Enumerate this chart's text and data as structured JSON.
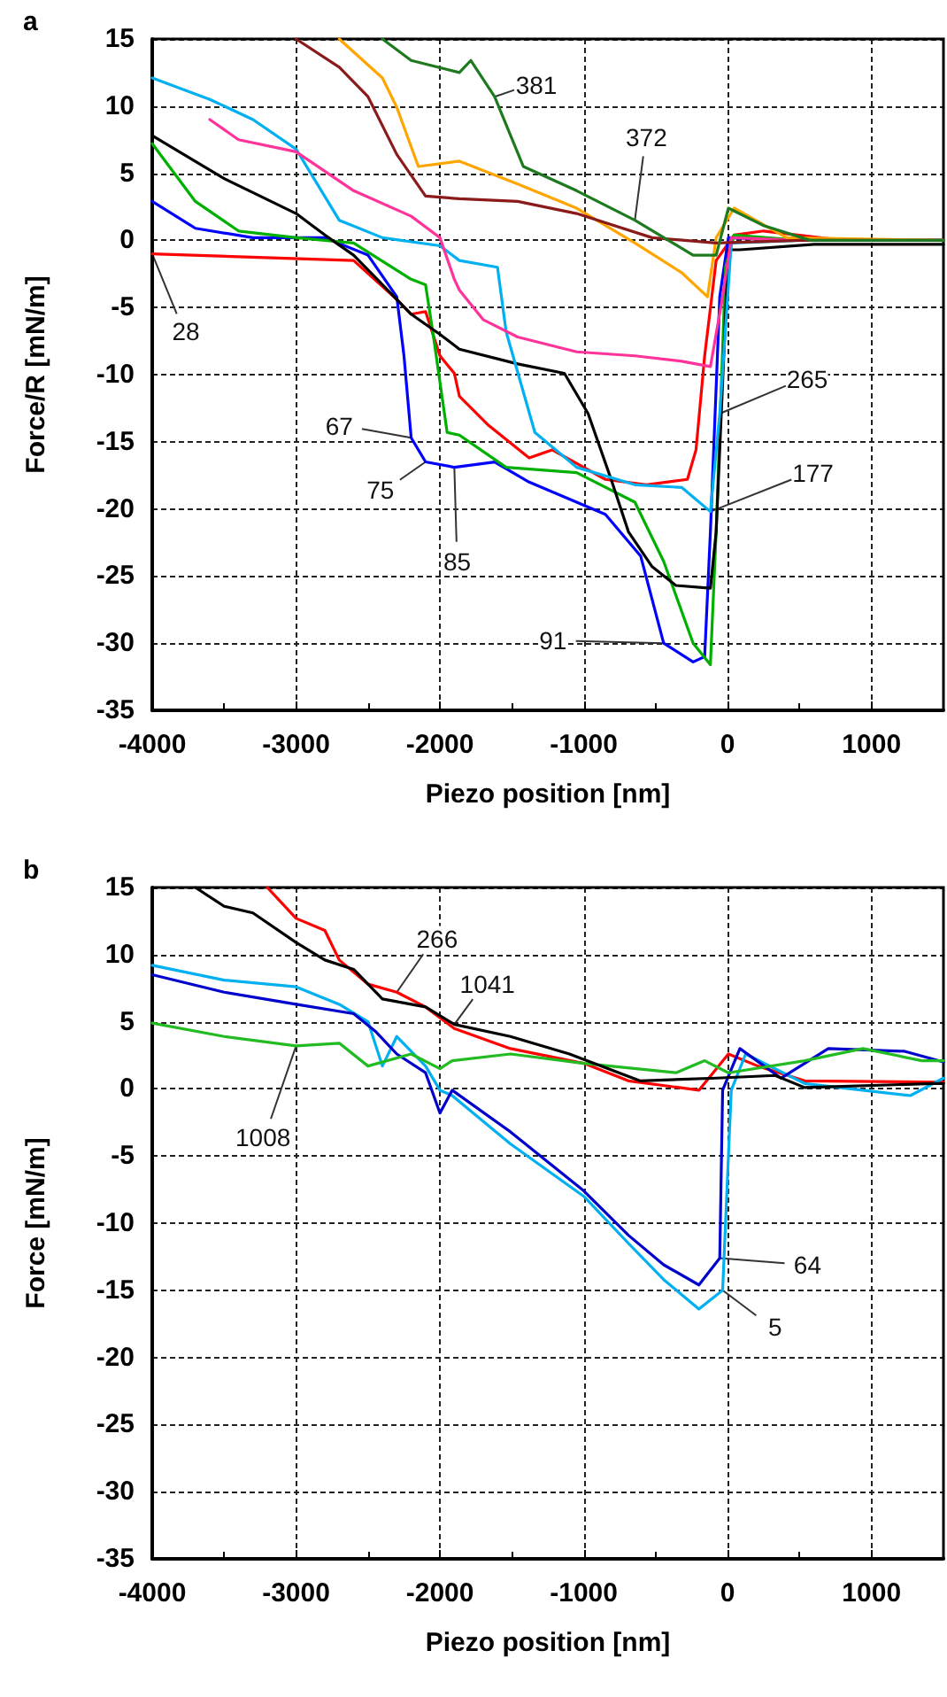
{
  "chart_data": [
    {
      "type": "line",
      "title": "a",
      "xlabel": "Piezo position [nm]",
      "ylabel": "Force/R [mN/m]",
      "xlim": [
        -4000,
        1500
      ],
      "ylim": [
        -35,
        15
      ],
      "xticks": [
        -4000,
        -3000,
        -2000,
        -1000,
        0,
        1000
      ],
      "yticks": [
        -35,
        -30,
        -25,
        -20,
        -15,
        -10,
        -5,
        0,
        5,
        10,
        15
      ],
      "grid": true,
      "marker": "none",
      "line_style": "solid",
      "series": [
        {
          "color": "#ff0000",
          "x": [
            -4000,
            -2600,
            -2300,
            -2200,
            -2100,
            -2000,
            -1900,
            -1865,
            -1660,
            -1380,
            -1220,
            -850,
            -565,
            -280,
            -220,
            -160,
            -80,
            45,
            250,
            800,
            1500
          ],
          "values": [
            -1,
            -1.5,
            -4.4,
            -5.5,
            -5.3,
            -8.6,
            -9.9,
            -11.6,
            -13.8,
            -16.2,
            -15.6,
            -17.8,
            -18.2,
            -17.8,
            -15.6,
            -8.6,
            -1.5,
            0.4,
            0.7,
            0,
            0
          ]
        },
        {
          "color": "#0000ff",
          "x": [
            -4000,
            -3700,
            -3300,
            -2800,
            -2500,
            -2300,
            -2250,
            -2200,
            -2100,
            -1900,
            -1620,
            -1380,
            -850,
            -605,
            -445,
            -240,
            -160,
            -120,
            -55,
            5,
            500,
            1500
          ],
          "values": [
            2.9,
            0.9,
            0.2,
            0.2,
            -1.1,
            -4.2,
            -8.6,
            -14.7,
            -16.5,
            -16.9,
            -16.5,
            -18,
            -20.4,
            -23.5,
            -30,
            -31.4,
            -31,
            -21.7,
            -4.2,
            0.2,
            0,
            0
          ]
        },
        {
          "color": "#00b000",
          "x": [
            -4000,
            -3700,
            -3400,
            -3000,
            -2600,
            -2200,
            -2100,
            -2050,
            -1950,
            -1865,
            -1540,
            -1050,
            -645,
            -445,
            -240,
            -120,
            -80,
            -15,
            45,
            500,
            1500
          ],
          "values": [
            7.2,
            2.9,
            0.7,
            0.2,
            -0.2,
            -2.9,
            -3.3,
            -6.8,
            -14.3,
            -14.5,
            -16.9,
            -17.3,
            -19.5,
            -23.9,
            -30,
            -31.6,
            -21.7,
            -2,
            0.4,
            0,
            0
          ]
        },
        {
          "color": "#000000",
          "x": [
            -4000,
            -3500,
            -3000,
            -2800,
            -2600,
            -2400,
            -2200,
            -2000,
            -1865,
            -1460,
            -1135,
            -970,
            -810,
            -690,
            -525,
            -360,
            -120,
            -80,
            5,
            85,
            600,
            1500
          ],
          "values": [
            7.8,
            4.6,
            2,
            0.4,
            -1.1,
            -3.3,
            -5.5,
            -7,
            -8.1,
            -9.2,
            -9.9,
            -12.9,
            -17.8,
            -21.7,
            -24.3,
            -25.7,
            -25.9,
            -21.7,
            -0.7,
            -0.7,
            -0.3,
            -0.3
          ]
        },
        {
          "color": "#00b0f0",
          "x": [
            -4000,
            -3600,
            -3300,
            -3000,
            -2700,
            -2400,
            -2000,
            -1865,
            -1600,
            -1540,
            -1340,
            -1050,
            -645,
            -320,
            -120,
            -55,
            25,
            500,
            1500
          ],
          "values": [
            12.1,
            10.5,
            9,
            6.8,
            1.5,
            0.2,
            -0.4,
            -1.5,
            -2,
            -6.8,
            -14.3,
            -16.9,
            -18.2,
            -18.4,
            -20.2,
            -12.9,
            -0.2,
            0,
            0
          ]
        },
        {
          "color": "#ff3399",
          "x": [
            -3600,
            -3400,
            -3000,
            -2600,
            -2200,
            -2000,
            -1900,
            -1865,
            -1700,
            -1460,
            -1050,
            -645,
            -320,
            -120,
            -35,
            25,
            500,
            1500
          ],
          "values": [
            9,
            7.5,
            6.6,
            3.7,
            1.8,
            0.2,
            -2.9,
            -3.7,
            -5.9,
            -7.2,
            -8.3,
            -8.6,
            -9,
            -9.4,
            -4.2,
            0.2,
            0,
            0
          ]
        },
        {
          "color": "#ffa500",
          "x": [
            -2700,
            -2400,
            -2300,
            -2150,
            -1865,
            -1460,
            -1050,
            -645,
            -320,
            -140,
            -80,
            45,
            410,
            1500
          ],
          "values": [
            15,
            12.1,
            9.9,
            5.5,
            5.9,
            4.2,
            2.4,
            -0.2,
            -2.4,
            -4.2,
            0.2,
            2.4,
            0.2,
            0
          ]
        },
        {
          "color": "#8b1a1a",
          "x": [
            -3000,
            -2700,
            -2500,
            -2300,
            -2100,
            -1865,
            -1460,
            -1050,
            -525,
            -80,
            500,
            1500
          ],
          "values": [
            15,
            12.9,
            10.7,
            6.4,
            3.3,
            3.1,
            2.9,
            2,
            0.2,
            -0.2,
            0,
            0
          ]
        },
        {
          "color": "#1e7a1e",
          "x": [
            -2400,
            -2200,
            -1865,
            -1785,
            -1620,
            -1420,
            -1050,
            -645,
            -240,
            -80,
            5,
            250,
            575,
            1500
          ],
          "values": [
            15,
            13.4,
            12.5,
            13.4,
            10.7,
            5.5,
            3.7,
            1.5,
            -1.1,
            -1.1,
            2.4,
            1.1,
            0,
            0
          ]
        }
      ],
      "annotations": [
        {
          "text": "381",
          "x": -1330,
          "y": 11.6
        },
        {
          "text": "372",
          "x": -565,
          "y": 7.7
        },
        {
          "text": "265",
          "x": 553,
          "y": -10.3
        },
        {
          "text": "177",
          "x": 593,
          "y": -17.3
        },
        {
          "text": "91",
          "x": -1215,
          "y": -29.8
        },
        {
          "text": "85",
          "x": -1880,
          "y": -23.9
        },
        {
          "text": "75",
          "x": -2414,
          "y": -18.6
        },
        {
          "text": "67",
          "x": -2700,
          "y": -13.8
        },
        {
          "text": "28",
          "x": -3766,
          "y": -6.8
        }
      ]
    },
    {
      "type": "line",
      "title": "b",
      "xlabel": "Piezo position [nm]",
      "ylabel": "Force [mN/m]",
      "xlim": [
        -4000,
        1500
      ],
      "ylim": [
        -35,
        15
      ],
      "xticks": [
        -4000,
        -3000,
        -2000,
        -1000,
        0,
        1000
      ],
      "yticks": [
        -35,
        -30,
        -25,
        -20,
        -15,
        -10,
        -5,
        0,
        5,
        10,
        15
      ],
      "grid": true,
      "marker": "none",
      "line_style": "solid",
      "series": [
        {
          "color": "#ff0000",
          "x": [
            -3200,
            -3000,
            -2800,
            -2700,
            -2500,
            -2300,
            -2100,
            -1900,
            -1510,
            -1000,
            -690,
            -200,
            5,
            210,
            535,
            1500
          ],
          "values": [
            15,
            12.7,
            11.8,
            9.6,
            7.8,
            7.2,
            6.1,
            4.5,
            3,
            1.9,
            0.6,
            -0.1,
            2.6,
            1.7,
            0.6,
            0.5
          ]
        },
        {
          "color": "#00b0f0",
          "x": [
            -4000,
            -3500,
            -3000,
            -2700,
            -2500,
            -2400,
            -2300,
            -2100,
            -2000,
            -1915,
            -1510,
            -1000,
            -690,
            -445,
            -200,
            -35,
            25,
            125,
            535,
            1270,
            1500
          ],
          "values": [
            9.2,
            8.1,
            7.6,
            6.3,
            5,
            1.7,
            3.9,
            1.7,
            -0.1,
            -0.5,
            -4.1,
            -8,
            -11.5,
            -14.2,
            -16.4,
            -15,
            -0.1,
            2.6,
            0.4,
            -0.5,
            0.8
          ]
        },
        {
          "color": "#0000cc",
          "x": [
            -4000,
            -3500,
            -3000,
            -2600,
            -2450,
            -2300,
            -2100,
            -2000,
            -1915,
            -1510,
            -1000,
            -690,
            -445,
            -200,
            -55,
            -35,
            85,
            370,
            700,
            1230,
            1500
          ],
          "values": [
            8.5,
            7.2,
            6.3,
            5.6,
            4.3,
            2.6,
            1.2,
            -1.8,
            -0.1,
            -3.2,
            -7.6,
            -10.9,
            -13.1,
            -14.6,
            -12.6,
            -0.1,
            3,
            0.8,
            3,
            2.8,
            2
          ]
        },
        {
          "color": "#22bb22",
          "x": [
            -4000,
            -3500,
            -3000,
            -2700,
            -2500,
            -2200,
            -2000,
            -1915,
            -1510,
            -1000,
            -360,
            -160,
            5,
            535,
            940,
            1350,
            1500
          ],
          "values": [
            4.9,
            3.9,
            3.2,
            3.4,
            1.7,
            2.6,
            1.5,
            2.1,
            2.6,
            1.9,
            1.2,
            2.1,
            1.2,
            2.1,
            3,
            2.1,
            2.1
          ]
        },
        {
          "color": "#000000",
          "x": [
            -3700,
            -3500,
            -3300,
            -3000,
            -2800,
            -2600,
            -2400,
            -2100,
            -1900,
            -1510,
            -1100,
            -610,
            -80,
            330,
            535,
            1430,
            1500
          ],
          "values": [
            15,
            13.6,
            13.1,
            10.9,
            9.6,
            8.9,
            6.7,
            6.1,
            4.8,
            3.9,
            2.6,
            0.6,
            0.8,
            1,
            0.1,
            0.4,
            0.4
          ]
        }
      ],
      "annotations": [
        {
          "text": "266",
          "x": -2020,
          "y": 11.2
        },
        {
          "text": "1041",
          "x": -1670,
          "y": 7.8
        },
        {
          "text": "1008",
          "x": -3230,
          "y": -3.6
        },
        {
          "text": "64",
          "x": 555,
          "y": -13.1
        },
        {
          "text": "5",
          "x": 330,
          "y": -17.7
        }
      ]
    }
  ]
}
